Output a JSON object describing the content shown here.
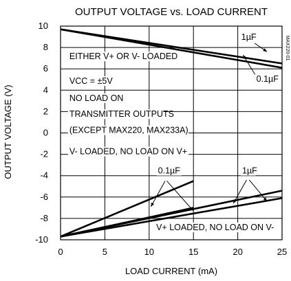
{
  "chart_data": {
    "type": "line",
    "title": "OUTPUT VOLTAGE vs. LOAD CURRENT",
    "xlabel": "LOAD CURRENT (mA)",
    "ylabel": "OUTPUT VOLTAGE (V)",
    "xlim": [
      0,
      25
    ],
    "ylim": [
      -10,
      10
    ],
    "x_ticks": [
      "0",
      "5",
      "10",
      "15",
      "20",
      "25"
    ],
    "y_ticks": [
      "10",
      "8",
      "6",
      "4",
      "2",
      "0",
      "-2",
      "-4",
      "-6",
      "-8",
      "-10"
    ],
    "grid": true,
    "series": [
      {
        "id": "vplus-1uF",
        "x": [
          0,
          25
        ],
        "y": [
          9.7,
          6.5
        ]
      },
      {
        "id": "vplus-0.1uF",
        "x": [
          0,
          25
        ],
        "y": [
          9.7,
          6.1
        ]
      },
      {
        "id": "vminus-0.1uF-a",
        "x": [
          0,
          15
        ],
        "y": [
          -9.7,
          -4.5
        ]
      },
      {
        "id": "vminus-0.1uF-b",
        "x": [
          0,
          25
        ],
        "y": [
          -9.7,
          -5.4
        ]
      },
      {
        "id": "vminus-1uF-a",
        "x": [
          0,
          25
        ],
        "y": [
          -9.7,
          -6.1
        ]
      },
      {
        "id": "vminus-1uF-b",
        "x": [
          0,
          15
        ],
        "y": [
          -9.7,
          -7.0
        ]
      }
    ],
    "annotations": [
      {
        "text": "1µF",
        "at": [
          20.4,
          8.7
        ]
      },
      {
        "text": "0.1µF",
        "at": [
          22.1,
          4.8
        ]
      },
      {
        "text": "EITHER V+ OR V- LOADED",
        "at": [
          1,
          6.9
        ]
      },
      {
        "text": "VCC = ±5V",
        "at": [
          1,
          4.6
        ]
      },
      {
        "text": "NO LOAD ON",
        "at": [
          1,
          3.0
        ]
      },
      {
        "text": "TRANSMITTER OUTPUTS",
        "at": [
          1,
          1.5
        ]
      },
      {
        "text": "(EXCEPT MAX220, MAX233A)",
        "at": [
          1,
          0.0
        ]
      },
      {
        "text": "V- LOADED, NO LOAD ON V+",
        "at": [
          1,
          -2.0
        ]
      },
      {
        "text": "0.1µF",
        "at": [
          11.0,
          -3.8
        ]
      },
      {
        "text": "1µF",
        "at": [
          20.5,
          -3.8
        ]
      },
      {
        "text": "V+ LOADED, NO LOAD ON V-",
        "at": [
          10.8,
          -9.1
        ]
      }
    ],
    "side_code": "MAX220-01"
  }
}
